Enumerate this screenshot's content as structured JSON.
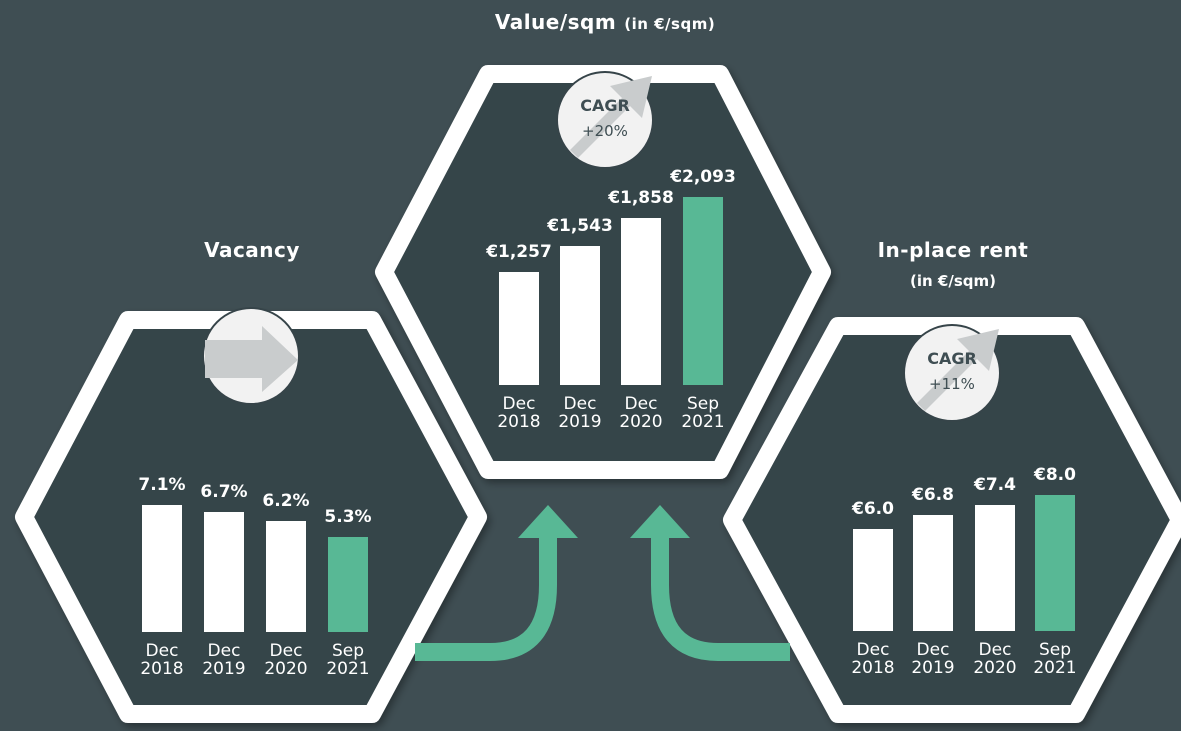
{
  "chart_data": [
    {
      "type": "bar",
      "title": "Vacancy",
      "categories": [
        "Dec 2018",
        "Dec 2019",
        "Dec 2020",
        "Sep 2021"
      ],
      "values": [
        7.1,
        6.7,
        6.2,
        5.3
      ],
      "value_labels": [
        "7.1%",
        "6.7%",
        "6.2%",
        "5.3%"
      ],
      "colors": [
        "#ffffff",
        "#ffffff",
        "#ffffff",
        "#58b895"
      ]
    },
    {
      "type": "bar",
      "title": "Value/sqm",
      "subtitle": "(in €/sqm)",
      "annotations": [
        "CAGR",
        "+20%"
      ],
      "categories": [
        "Dec 2018",
        "Dec 2019",
        "Dec 2020",
        "Sep 2021"
      ],
      "values": [
        1257,
        1543,
        1858,
        2093
      ],
      "value_labels": [
        "€1,257",
        "€1,543",
        "€1,858",
        "€2,093"
      ],
      "colors": [
        "#ffffff",
        "#ffffff",
        "#ffffff",
        "#58b895"
      ]
    },
    {
      "type": "bar",
      "title": "In-place rent",
      "subtitle": "(in €/sqm)",
      "annotations": [
        "CAGR",
        "+11%"
      ],
      "categories": [
        "Dec 2018",
        "Dec 2019",
        "Dec 2020",
        "Sep 2021"
      ],
      "values": [
        6.0,
        6.8,
        7.4,
        8.0
      ],
      "value_labels": [
        "€6.0",
        "€6.8",
        "€7.4",
        "€8.0"
      ],
      "colors": [
        "#ffffff",
        "#ffffff",
        "#ffffff",
        "#58b895"
      ]
    }
  ]
}
